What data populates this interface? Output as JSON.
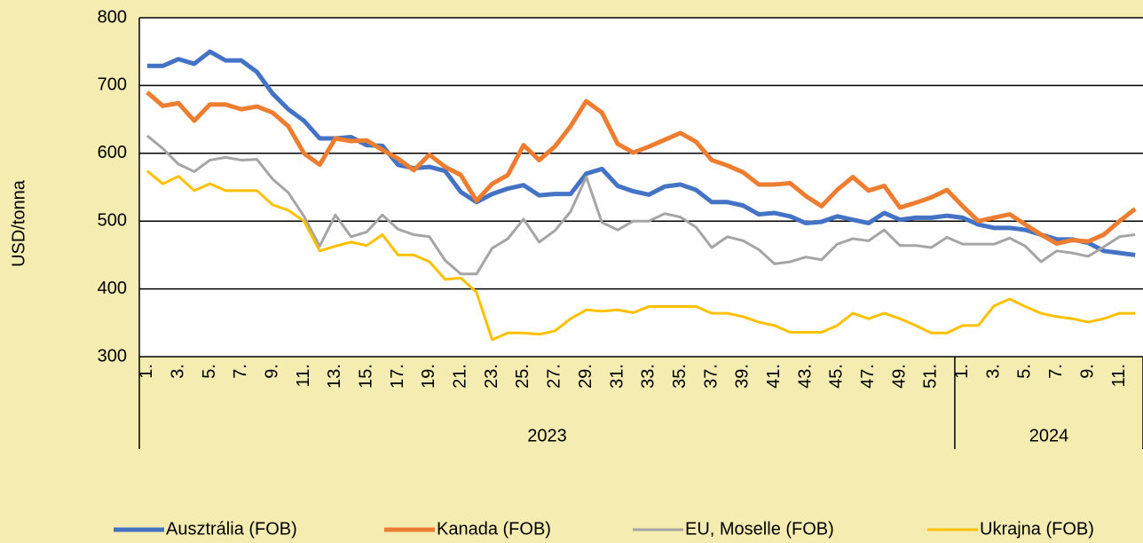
{
  "chart_data": {
    "type": "line",
    "y_label": "USD/tonna",
    "ylim": [
      300,
      800
    ],
    "yticks": [
      300,
      400,
      500,
      600,
      700,
      800
    ],
    "grid": true,
    "legend": "bottom",
    "groups": [
      "2023",
      "2024"
    ],
    "categories": [
      "1.",
      null,
      "3.",
      null,
      "5.",
      null,
      "7.",
      null,
      "9.",
      null,
      "11.",
      null,
      "13.",
      null,
      "15.",
      null,
      "17.",
      null,
      "19.",
      null,
      "21.",
      null,
      "23.",
      null,
      "25.",
      null,
      "27.",
      null,
      "29.",
      null,
      "31.",
      null,
      "33.",
      null,
      "35.",
      null,
      "37.",
      null,
      "39.",
      null,
      "41.",
      null,
      "43.",
      null,
      "45.",
      null,
      "47.",
      null,
      "49.",
      null,
      "51.",
      null,
      "1.",
      null,
      "3.",
      null,
      "5.",
      null,
      "7.",
      null,
      "9.",
      null,
      "11.",
      null
    ],
    "series": [
      {
        "name": "Ausztrália (FOB)",
        "color": "#4472c4",
        "values": [
          729,
          729,
          739,
          732,
          750,
          737,
          737,
          720,
          688,
          665,
          648,
          622,
          622,
          624,
          612,
          611,
          583,
          578,
          580,
          574,
          543,
          528,
          540,
          548,
          553,
          538,
          540,
          540,
          570,
          577,
          552,
          544,
          539,
          551,
          554,
          546,
          528,
          528,
          523,
          510,
          512,
          507,
          497,
          499,
          507,
          502,
          497,
          512,
          502,
          505,
          505,
          508,
          505,
          495,
          490,
          490,
          487,
          480,
          473,
          473,
          468,
          456,
          453,
          450
        ]
      },
      {
        "name": "Kanada (FOB)",
        "color": "#ed7d31",
        "values": [
          690,
          670,
          674,
          648,
          672,
          672,
          665,
          669,
          660,
          640,
          600,
          583,
          622,
          618,
          619,
          605,
          592,
          575,
          598,
          580,
          568,
          530,
          555,
          568,
          612,
          590,
          610,
          640,
          677,
          660,
          614,
          601,
          610,
          620,
          630,
          617,
          590,
          582,
          572,
          554,
          554,
          556,
          537,
          522,
          546,
          565,
          545,
          552,
          520,
          527,
          535,
          546,
          522,
          500,
          505,
          510,
          495,
          480,
          467,
          472,
          470,
          480,
          500,
          518
        ]
      },
      {
        "name": "EU, Moselle (FOB)",
        "color": "#a5a5a5",
        "values": [
          626,
          607,
          584,
          573,
          590,
          594,
          590,
          591,
          562,
          542,
          507,
          463,
          509,
          477,
          484,
          509,
          488,
          480,
          477,
          442,
          422,
          422,
          460,
          474,
          503,
          469,
          486,
          514,
          565,
          498,
          487,
          500,
          500,
          511,
          506,
          491,
          461,
          477,
          471,
          458,
          437,
          440,
          447,
          443,
          466,
          474,
          471,
          487,
          464,
          464,
          461,
          476,
          466,
          466,
          466,
          475,
          463,
          440,
          456,
          453,
          448,
          462,
          477,
          480
        ]
      },
      {
        "name": "Ukrajna (FOB)",
        "color": "#ffc000",
        "values": [
          574,
          555,
          566,
          545,
          555,
          545,
          545,
          545,
          524,
          516,
          500,
          456,
          463,
          469,
          464,
          480,
          450,
          450,
          440,
          414,
          416,
          395,
          325,
          335,
          335,
          333,
          338,
          356,
          369,
          367,
          369,
          365,
          374,
          374,
          374,
          374,
          364,
          364,
          359,
          351,
          346,
          336,
          336,
          336,
          346,
          364,
          356,
          364,
          356,
          346,
          335,
          335,
          346,
          346,
          375,
          385,
          374,
          364,
          359,
          356,
          351,
          356,
          364,
          364
        ]
      }
    ]
  }
}
